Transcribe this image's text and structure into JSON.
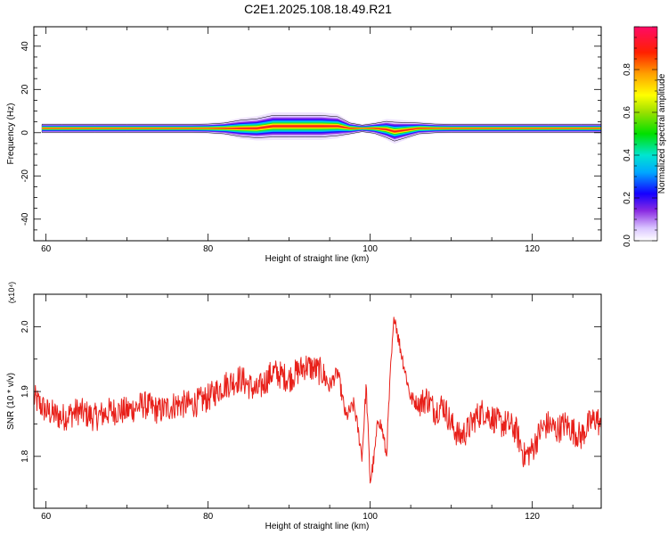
{
  "chart_data": [
    {
      "type": "heatmap",
      "title": "C2E1.2025.108.18.49.R21",
      "xlabel": "Height of straight line (km)",
      "ylabel": "Frequency (Hz)",
      "xlim": [
        58.5,
        128.5
      ],
      "ylim": [
        -50,
        49
      ],
      "xticks": [
        60,
        80,
        100,
        120
      ],
      "yticks": [
        -40,
        -20,
        0,
        20,
        40
      ],
      "band": {
        "x": [
          59.5,
          62,
          66,
          70,
          74,
          78,
          80,
          82,
          84,
          86,
          88,
          90,
          92,
          94,
          96,
          97.5,
          99,
          100.5,
          102,
          103,
          104,
          106,
          108,
          110,
          114,
          118,
          122,
          126,
          128.5
        ],
        "peak_freq": [
          2,
          2,
          2,
          2,
          2,
          2,
          2,
          2,
          2,
          2,
          3,
          3,
          3,
          3,
          3,
          2,
          2,
          2,
          1.5,
          0.5,
          1,
          2,
          2,
          2,
          2,
          2,
          2,
          2,
          2
        ],
        "halfwidth_hz": [
          1.5,
          1.5,
          1.5,
          1.5,
          1.5,
          1.5,
          1.6,
          2,
          3,
          3.5,
          4,
          4,
          4,
          4,
          3.5,
          2,
          1.2,
          1.8,
          3,
          3.5,
          3,
          2,
          1.6,
          1.5,
          1.5,
          1.5,
          1.5,
          1.5,
          1.5
        ]
      },
      "colorbar": {
        "label": "Normalized spectral amplitude",
        "range": [
          0,
          1
        ],
        "ticks": [
          "0.0",
          "0.2",
          "0.4",
          "0.6",
          "0.8"
        ],
        "tick_values": [
          0,
          0.2,
          0.4,
          0.6,
          0.8
        ]
      }
    },
    {
      "type": "line",
      "xlabel": "Height of straight line (km)",
      "ylabel": "SNR (10 * v/v)",
      "y_multiplier": "(x10⁴)",
      "xlim": [
        58.5,
        128.5
      ],
      "ylim": [
        1.72,
        2.05
      ],
      "xticks": [
        60,
        80,
        100,
        120
      ],
      "yticks": [
        1.8,
        1.9,
        2.0
      ],
      "ytick_labels": [
        "1.8",
        "1.9",
        "2.0"
      ],
      "series": [
        {
          "color": "#e8201a",
          "x": [
            58.5,
            60,
            62,
            64,
            66,
            68,
            70,
            72,
            74,
            76,
            78,
            80,
            82,
            84,
            86,
            88,
            90,
            92,
            94,
            95,
            96,
            97,
            98,
            99,
            99.5,
            100,
            100.5,
            101,
            101.5,
            102,
            102.5,
            103,
            103.5,
            104,
            104.5,
            105,
            106,
            107,
            108,
            109,
            110,
            111,
            112,
            113,
            114,
            115,
            116,
            117,
            118,
            119,
            120,
            121,
            122,
            123,
            124,
            125,
            126,
            127,
            128,
            128.5
          ],
          "y": [
            1.89,
            1.87,
            1.86,
            1.87,
            1.86,
            1.87,
            1.87,
            1.88,
            1.87,
            1.88,
            1.88,
            1.89,
            1.91,
            1.92,
            1.9,
            1.93,
            1.92,
            1.94,
            1.93,
            1.91,
            1.93,
            1.86,
            1.88,
            1.8,
            1.91,
            1.76,
            1.8,
            1.86,
            1.84,
            1.8,
            1.93,
            2.02,
            1.98,
            1.95,
            1.92,
            1.89,
            1.88,
            1.89,
            1.87,
            1.88,
            1.85,
            1.83,
            1.84,
            1.86,
            1.87,
            1.86,
            1.85,
            1.85,
            1.84,
            1.8,
            1.81,
            1.84,
            1.85,
            1.84,
            1.85,
            1.84,
            1.83,
            1.85,
            1.86,
            1.84
          ]
        }
      ]
    }
  ]
}
